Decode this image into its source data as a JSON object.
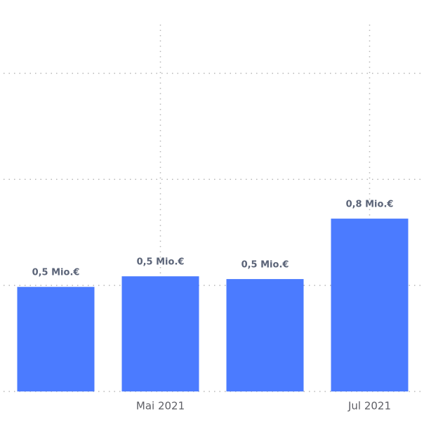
{
  "chart_data": {
    "type": "bar",
    "categories": [
      null,
      "Mai 2021",
      null,
      "Jul 2021"
    ],
    "values": [
      493000,
      543000,
      530000,
      815000
    ],
    "value_labels": [
      "0,5 Mio.€",
      "0,5 Mio.€",
      "0,5 Mio.€",
      "0,8 Mio.€"
    ],
    "color": "#4b7bff",
    "ylim": [
      0,
      1730000
    ],
    "yticks": [
      0,
      500000,
      1000000,
      1500000
    ],
    "grid": true
  }
}
